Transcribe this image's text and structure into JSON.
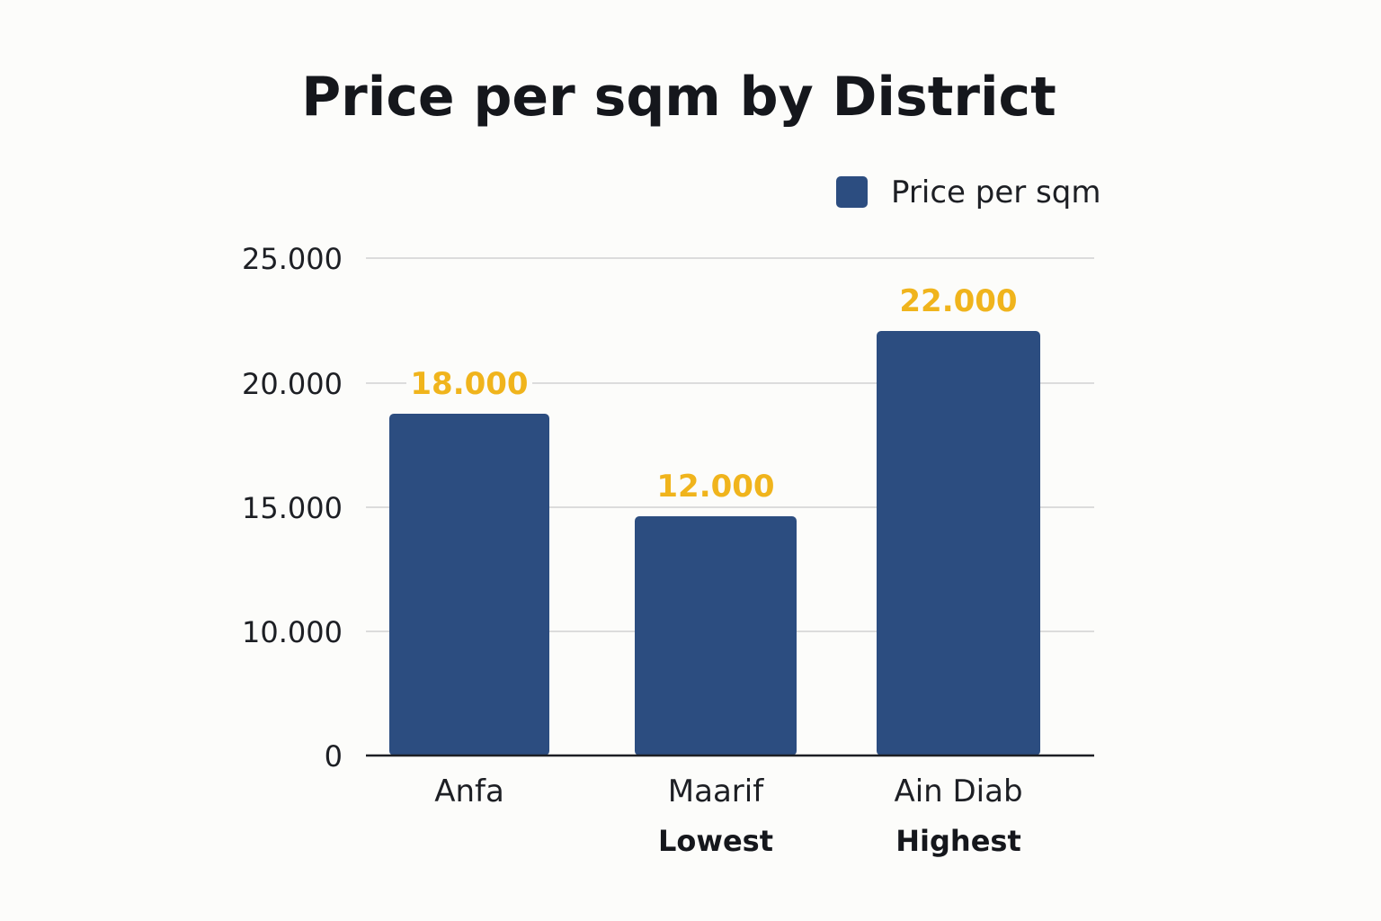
{
  "chart_data": {
    "type": "bar",
    "title": "Price per sqm by District",
    "categories": [
      "Anfa",
      "Maarif",
      "Ain Diab"
    ],
    "series": [
      {
        "name": "Price per sqm",
        "values": [
          18000,
          12000,
          22000
        ],
        "data_labels": [
          "18.000",
          "12.000",
          "22.000"
        ]
      }
    ],
    "category_annotations": [
      "",
      "Lowest",
      "Highest"
    ],
    "yticks": [
      0,
      10000,
      15000,
      20000,
      25000
    ],
    "ytick_labels": [
      "0",
      "10.000",
      "15.000",
      "20.000",
      "25.000"
    ],
    "ylim": [
      0,
      25000
    ],
    "legend_position": "top-right",
    "grid": true
  },
  "colors": {
    "bar": "#2c4d80",
    "data_label": "#f0b41c"
  }
}
